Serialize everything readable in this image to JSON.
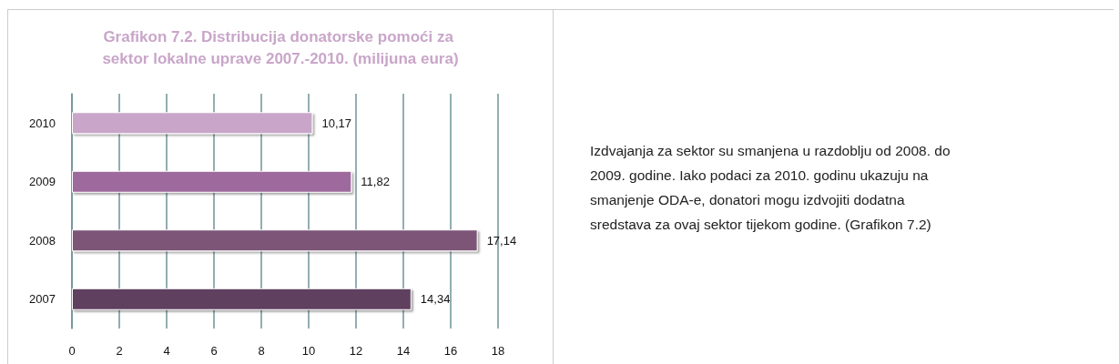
{
  "chart_data": {
    "type": "bar",
    "orientation": "horizontal",
    "title": "Grafikon 7.2. Distribucija donatorske pomoći za sektor lokalne uprave 2007.-2010. (milijuna eura)",
    "categories": [
      "2010",
      "2009",
      "2008",
      "2007"
    ],
    "values": [
      10.17,
      11.82,
      17.14,
      14.34
    ],
    "colors": [
      "#c9a6c9",
      "#9e6b9e",
      "#7b5577",
      "#5f3f5e"
    ],
    "value_labels": [
      "10,17",
      "11,82",
      "17,14",
      "14,34"
    ],
    "xlim": [
      0,
      18
    ],
    "xticks": [
      0,
      2,
      4,
      6,
      8,
      10,
      12,
      14,
      16,
      18
    ],
    "grid": "x",
    "annotations": [
      "Izdvajanja za sektor su smanjena u razdoblju od 2008. do 2009. godine. Iako podaci za 2010. godinu ukazuju na smanjenje ODA-e, donatori mogu izdvojiti dodatna sredstava za ovaj sektor tijekom godine. (Grafikon 7.2)"
    ]
  }
}
